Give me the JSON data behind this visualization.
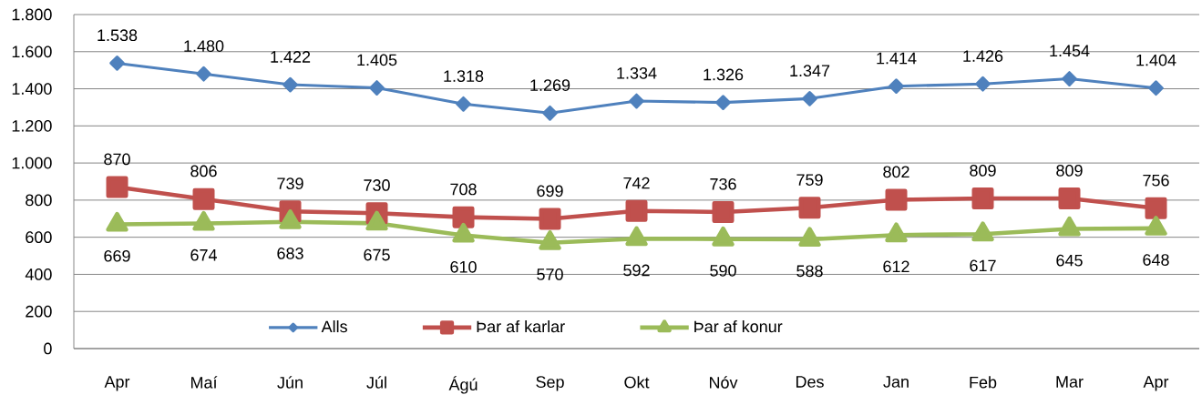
{
  "chart_data": {
    "type": "line",
    "categories": [
      "Apr",
      "Maí",
      "Jún",
      "Júl",
      "Ágú",
      "Sep",
      "Okt",
      "Nóv",
      "Des",
      "Jan",
      "Feb",
      "Mar",
      "Apr"
    ],
    "series": [
      {
        "name": "Alls",
        "color": "#4f81bd",
        "marker": "diamond",
        "values": [
          1538,
          1480,
          1422,
          1405,
          1318,
          1269,
          1334,
          1326,
          1347,
          1414,
          1426,
          1454,
          1404
        ],
        "value_labels": [
          "1.538",
          "1.480",
          "1.422",
          "1.405",
          "1.318",
          "1.269",
          "1.334",
          "1.326",
          "1.347",
          "1.414",
          "1.426",
          "1.454",
          "1.404"
        ]
      },
      {
        "name": "Þar af karlar",
        "color": "#c0504d",
        "marker": "square",
        "values": [
          870,
          806,
          739,
          730,
          708,
          699,
          742,
          736,
          759,
          802,
          809,
          809,
          756
        ],
        "value_labels": [
          "870",
          "806",
          "739",
          "730",
          "708",
          "699",
          "742",
          "736",
          "759",
          "802",
          "809",
          "809",
          "756"
        ]
      },
      {
        "name": "Þar af konur",
        "color": "#9bbb59",
        "marker": "triangle",
        "values": [
          669,
          674,
          683,
          675,
          610,
          570,
          592,
          590,
          588,
          612,
          617,
          645,
          648
        ],
        "value_labels": [
          "669",
          "674",
          "683",
          "675",
          "610",
          "570",
          "592",
          "590",
          "588",
          "612",
          "617",
          "645",
          "648"
        ]
      }
    ],
    "ylim": [
      0,
      1800
    ],
    "yticks": [
      0,
      200,
      400,
      600,
      800,
      {
        "value": 1000,
        "label": "1.000"
      },
      {
        "value": 1200,
        "label": "1.200"
      },
      {
        "value": 1400,
        "label": "1.400"
      },
      {
        "value": 1600,
        "label": "1.600"
      },
      {
        "value": 1800,
        "label": "1.800"
      }
    ],
    "grid": "y",
    "legend": "bottom",
    "line_style": "solid"
  }
}
